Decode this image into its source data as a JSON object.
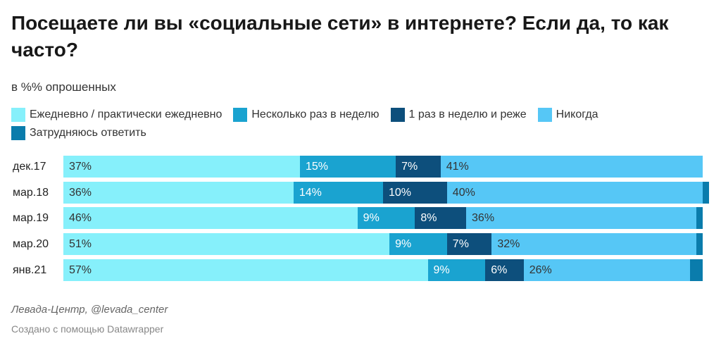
{
  "title": "Посещаете ли вы «социальные сети» в интернете? Если да, то как часто?",
  "subtitle": "в %% опрошенных",
  "legend": [
    {
      "label": "Ежедневно / практически ежедневно",
      "color": "#86f0fb"
    },
    {
      "label": "Несколько раз в неделю",
      "color": "#1aa3d0"
    },
    {
      "label": "1 раз в неделю и реже",
      "color": "#0d4f7c"
    },
    {
      "label": "Никогда",
      "color": "#56c7f6"
    },
    {
      "label": "Затрудняюсь ответить",
      "color": "#0a7cac"
    }
  ],
  "footer": {
    "source": "Левада-Центр, @levada_center",
    "credit": "Создано с помощью Datawrapper"
  },
  "chart_data": {
    "type": "bar",
    "orientation": "horizontal",
    "stacked": true,
    "categories": [
      "дек.17",
      "мар.18",
      "мар.19",
      "мар.20",
      "янв.21"
    ],
    "series": [
      {
        "name": "Ежедневно / практически ежедневно",
        "values": [
          37,
          36,
          46,
          51,
          57
        ],
        "labels": [
          "37%",
          "36%",
          "46%",
          "51%",
          "57%"
        ],
        "label_color": "#333333"
      },
      {
        "name": "Несколько раз в неделю",
        "values": [
          15,
          14,
          9,
          9,
          9
        ],
        "labels": [
          "15%",
          "14%",
          "9%",
          "9%",
          "9%"
        ],
        "label_color": "#ffffff"
      },
      {
        "name": "1 раз в неделю и реже",
        "values": [
          7,
          10,
          8,
          7,
          6
        ],
        "labels": [
          "7%",
          "10%",
          "8%",
          "7%",
          "6%"
        ],
        "label_color": "#ffffff"
      },
      {
        "name": "Никогда",
        "values": [
          41,
          40,
          36,
          32,
          26
        ],
        "labels": [
          "41%",
          "40%",
          "36%",
          "32%",
          "26%"
        ],
        "label_color": "#333333"
      },
      {
        "name": "Затрудняюсь ответить",
        "values": [
          0,
          1,
          1,
          1,
          2
        ],
        "labels": [
          "",
          "",
          "",
          "",
          ""
        ],
        "label_color": "#ffffff"
      }
    ],
    "xlim": [
      0,
      100
    ]
  }
}
